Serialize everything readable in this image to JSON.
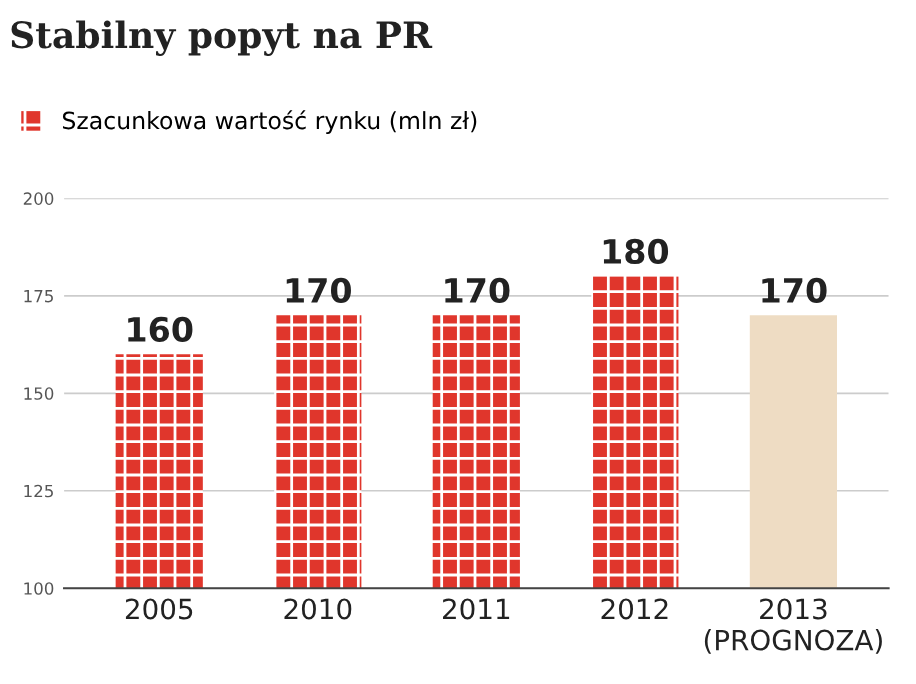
{
  "chart_data": {
    "type": "bar",
    "title": "Stabilny popyt na PR",
    "categories": [
      "2005",
      "2010",
      "2011",
      "2012",
      "2013\n(PROGNOZA)"
    ],
    "series": [
      {
        "name": "Szacunkowa wartość rynku (mln zł)",
        "colors": [
          "#e0362c",
          "#e0362c",
          "#e0362c",
          "#e0362c",
          "#eedcc3"
        ],
        "values": [
          160,
          170,
          170,
          180,
          170
        ]
      }
    ],
    "ylim": [
      100,
      200
    ],
    "yticks": [
      100,
      125,
      150,
      175,
      200
    ],
    "grid": "y",
    "legend": "top left",
    "data_labels": true
  }
}
